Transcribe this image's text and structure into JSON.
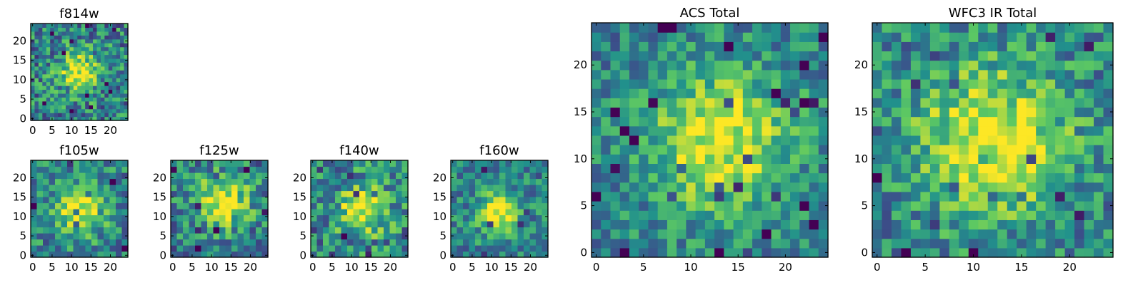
{
  "figure": {
    "colormap": [
      "#440154",
      "#3b528b",
      "#21918c",
      "#5ec962",
      "#fde725"
    ]
  },
  "chart_data": [
    {
      "type": "heatmap",
      "title": "f814w",
      "xlabel": "",
      "ylabel": "",
      "xlim": [
        -0.5,
        24.5
      ],
      "ylim": [
        -0.5,
        24.5
      ],
      "grid_size": 25,
      "x_ticks": [
        0,
        5,
        10,
        15,
        20
      ],
      "y_ticks": [
        0,
        5,
        10,
        15,
        20
      ],
      "peak": [
        12,
        12
      ],
      "spread": 3.5,
      "noise": 0.3,
      "seed": 11,
      "grid": false
    },
    {
      "type": "heatmap",
      "title": "f105w",
      "xlabel": "",
      "ylabel": "",
      "xlim": [
        -0.5,
        24.5
      ],
      "ylim": [
        -0.5,
        24.5
      ],
      "grid_size": 16,
      "x_ticks": [
        0,
        5,
        10,
        15,
        20
      ],
      "y_ticks": [
        0,
        5,
        10,
        15,
        20
      ],
      "peak": [
        12,
        12
      ],
      "spread": 4.5,
      "noise": 0.25,
      "seed": 23,
      "grid": false
    },
    {
      "type": "heatmap",
      "title": "f125w",
      "xlabel": "",
      "ylabel": "",
      "xlim": [
        -0.5,
        24.5
      ],
      "ylim": [
        -0.5,
        24.5
      ],
      "grid_size": 16,
      "x_ticks": [
        0,
        5,
        10,
        15,
        20
      ],
      "y_ticks": [
        0,
        5,
        10,
        15,
        20
      ],
      "peak": [
        13,
        14
      ],
      "spread": 4.5,
      "noise": 0.28,
      "seed": 37,
      "grid": false
    },
    {
      "type": "heatmap",
      "title": "f140w",
      "xlabel": "",
      "ylabel": "",
      "xlim": [
        -0.5,
        24.5
      ],
      "ylim": [
        -0.5,
        24.5
      ],
      "grid_size": 16,
      "x_ticks": [
        0,
        5,
        10,
        15,
        20
      ],
      "y_ticks": [
        0,
        5,
        10,
        15,
        20
      ],
      "peak": [
        13,
        12
      ],
      "spread": 4.5,
      "noise": 0.3,
      "seed": 41,
      "grid": false
    },
    {
      "type": "heatmap",
      "title": "f160w",
      "xlabel": "",
      "ylabel": "",
      "xlim": [
        -0.5,
        24.5
      ],
      "ylim": [
        -0.5,
        24.5
      ],
      "grid_size": 16,
      "x_ticks": [
        0,
        5,
        10,
        15,
        20
      ],
      "y_ticks": [
        0,
        5,
        10,
        15,
        20
      ],
      "peak": [
        12,
        11
      ],
      "spread": 3.8,
      "noise": 0.22,
      "seed": 53,
      "grid": false
    },
    {
      "type": "heatmap",
      "title": "ACS Total",
      "xlabel": "",
      "ylabel": "",
      "xlim": [
        -0.5,
        24.5
      ],
      "ylim": [
        -0.5,
        24.5
      ],
      "grid_size": 25,
      "x_ticks": [
        0,
        5,
        10,
        15,
        20
      ],
      "y_ticks": [
        0,
        5,
        10,
        15,
        20
      ],
      "peak": [
        13,
        12
      ],
      "spread": 5,
      "noise": 0.22,
      "seed": 67,
      "grid": false
    },
    {
      "type": "heatmap",
      "title": "WFC3 IR Total",
      "xlabel": "",
      "ylabel": "",
      "xlim": [
        -0.5,
        24.5
      ],
      "ylim": [
        -0.5,
        24.5
      ],
      "grid_size": 25,
      "x_ticks": [
        0,
        5,
        10,
        15,
        20
      ],
      "y_ticks": [
        0,
        5,
        10,
        15,
        20
      ],
      "peak": [
        12,
        12
      ],
      "spread": 5.5,
      "noise": 0.25,
      "seed": 79,
      "grid": false
    }
  ]
}
